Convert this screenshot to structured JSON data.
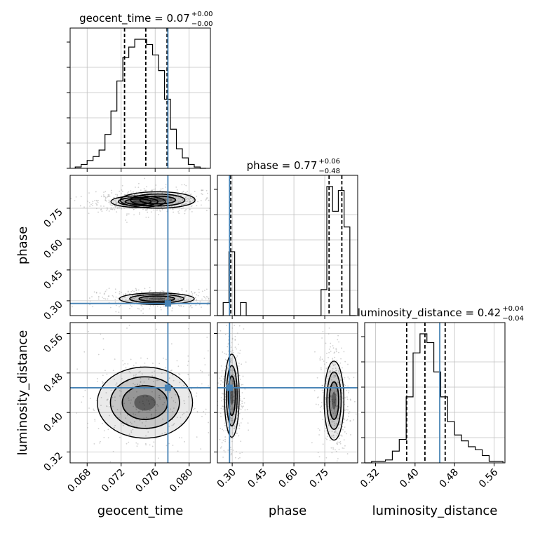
{
  "chart_data": {
    "type": "corner",
    "parameters": [
      "geocent_time",
      "phase",
      "luminosity_distance"
    ],
    "colors": {
      "truth": "#4682b4",
      "hist": "#000000",
      "grid": "#c0c0c0",
      "sample": "#aaaaaa"
    },
    "titles": [
      {
        "param": "geocent_time",
        "main": "geocent_time = 0.07",
        "upper": "+0.00",
        "lower": "−0.00"
      },
      {
        "param": "phase",
        "main": "phase = 0.77",
        "upper": "+0.06",
        "lower": "−0.48"
      },
      {
        "param": "luminosity_distance",
        "main": "luminosity_distance = 0.42",
        "upper": "+0.04",
        "lower": "−0.04"
      }
    ],
    "ranges": {
      "geocent_time": [
        0.066,
        0.0825
      ],
      "phase": [
        0.228,
        0.91
      ],
      "luminosity_distance": [
        0.298,
        0.582
      ]
    },
    "ticks": {
      "geocent_time": [
        0.068,
        0.072,
        0.076,
        0.08
      ],
      "phase": [
        0.3,
        0.45,
        0.6,
        0.75
      ],
      "luminosity_distance": [
        0.32,
        0.4,
        0.48,
        0.56
      ]
    },
    "tick_labels": {
      "geocent_time": [
        "0.068",
        "0.072",
        "0.076",
        "0.080"
      ],
      "phase": [
        "0.30",
        "0.45",
        "0.60",
        "0.75"
      ],
      "luminosity_distance": [
        "0.32",
        "0.40",
        "0.48",
        "0.56"
      ]
    },
    "truth": {
      "geocent_time": 0.0775,
      "phase": 0.287,
      "luminosity_distance": 0.45
    },
    "quantiles": {
      "geocent_time": [
        0.0724,
        0.0749,
        0.0774
      ],
      "phase": [
        0.293,
        0.771,
        0.833
      ],
      "luminosity_distance": [
        0.383,
        0.42,
        0.461
      ]
    },
    "hist_edges": {
      "geocent_time": [
        0.0666,
        0.0673,
        0.068,
        0.0687,
        0.0694,
        0.0701,
        0.0708,
        0.0715,
        0.0722,
        0.0729,
        0.0736,
        0.0743,
        0.075,
        0.0757,
        0.0764,
        0.0771,
        0.0778,
        0.0785,
        0.0792,
        0.0799,
        0.0806,
        0.0813,
        0.082
      ],
      "phase": [
        0.228,
        0.256,
        0.284,
        0.312,
        0.34,
        0.368,
        0.396,
        0.424,
        0.452,
        0.48,
        0.508,
        0.536,
        0.564,
        0.592,
        0.62,
        0.648,
        0.676,
        0.704,
        0.732,
        0.76,
        0.788,
        0.816,
        0.844,
        0.872,
        0.9
      ],
      "luminosity_distance": [
        0.298,
        0.312,
        0.326,
        0.34,
        0.354,
        0.368,
        0.382,
        0.396,
        0.41,
        0.424,
        0.438,
        0.452,
        0.466,
        0.48,
        0.494,
        0.508,
        0.522,
        0.536,
        0.55,
        0.564,
        0.578
      ]
    },
    "hist_counts": {
      "geocent_time": [
        1,
        3,
        6,
        9,
        14,
        26,
        44,
        67,
        85,
        93,
        99,
        99,
        95,
        87,
        75,
        53,
        30,
        15,
        8,
        3,
        1,
        0
      ],
      "phase": [
        0,
        10,
        49,
        0,
        10,
        0,
        0,
        0,
        0,
        0,
        0,
        0,
        0,
        0,
        0,
        0,
        0,
        0,
        20,
        99,
        80,
        96,
        68,
        0
      ],
      "luminosity_distance": [
        0,
        1,
        1,
        2,
        8,
        16,
        45,
        75,
        88,
        82,
        62,
        45,
        28,
        19,
        15,
        11,
        9,
        5,
        1,
        1
      ]
    },
    "contours_2d": [
      {
        "x": "geocent_time",
        "y": "phase",
        "blobs": [
          {
            "cx": 0.0763,
            "cy": 0.79,
            "sx": 0.0022,
            "sy": 0.02
          },
          {
            "cx": 0.074,
            "cy": 0.782,
            "sx": 0.0016,
            "sy": 0.014
          },
          {
            "cx": 0.0762,
            "cy": 0.31,
            "sx": 0.0022,
            "sy": 0.014
          }
        ]
      },
      {
        "x": "geocent_time",
        "y": "luminosity_distance",
        "blobs": [
          {
            "cx": 0.0748,
            "cy": 0.42,
            "sx": 0.0028,
            "sy": 0.036
          }
        ]
      },
      {
        "x": "phase",
        "y": "luminosity_distance",
        "blobs": [
          {
            "cx": 0.298,
            "cy": 0.434,
            "sx": 0.018,
            "sy": 0.042
          },
          {
            "cx": 0.795,
            "cy": 0.424,
            "sx": 0.024,
            "sy": 0.04
          }
        ]
      }
    ],
    "grid": true
  }
}
